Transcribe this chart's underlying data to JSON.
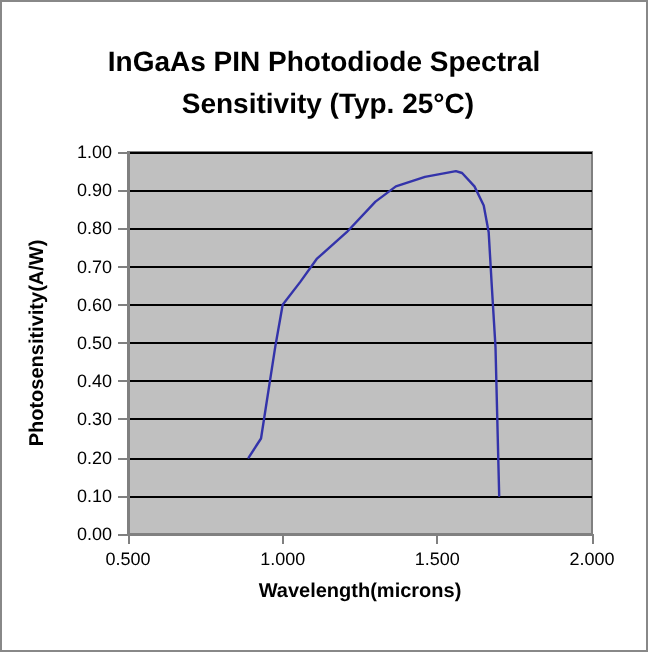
{
  "chart_data": {
    "type": "line",
    "title": "InGaAs PIN Photodiode Spectral Sensitivity (Typ. 25°C)",
    "xlabel": "Wavelength(microns)",
    "ylabel": "Photosensitivity(A/W)",
    "series": [
      {
        "color": "#3333aa",
        "x": [
          0.89,
          0.93,
          0.976,
          1.0,
          1.057,
          1.11,
          1.207,
          1.3,
          1.366,
          1.46,
          1.56,
          1.58,
          1.62,
          1.65,
          1.666,
          1.676,
          1.688,
          1.7
        ],
        "values": [
          0.2,
          0.25,
          0.49,
          0.6,
          0.66,
          0.72,
          0.79,
          0.87,
          0.91,
          0.935,
          0.95,
          0.945,
          0.91,
          0.86,
          0.79,
          0.65,
          0.49,
          0.1
        ]
      }
    ],
    "xlim": [
      0.5,
      2.0
    ],
    "xticks": [
      {
        "value": 0.5,
        "label": "0.500"
      },
      {
        "value": 1.0,
        "label": "1.000"
      },
      {
        "value": 1.5,
        "label": "1.500"
      },
      {
        "value": 2.0,
        "label": "2.000"
      }
    ],
    "ylim": [
      0,
      1
    ],
    "yticks": [
      {
        "value": 0,
        "label": "0.00"
      },
      {
        "value": 0.1,
        "label": "0.10"
      },
      {
        "value": 0.2,
        "label": "0.20"
      },
      {
        "value": 0.3,
        "label": "0.30"
      },
      {
        "value": 0.4,
        "label": "0.40"
      },
      {
        "value": 0.5,
        "label": "0.50"
      },
      {
        "value": 0.6,
        "label": "0.60"
      },
      {
        "value": 0.7,
        "label": "0.70"
      },
      {
        "value": 0.8,
        "label": "0.80"
      },
      {
        "value": 0.9,
        "label": "0.90"
      },
      {
        "value": 1.0,
        "label": "1.00"
      }
    ],
    "grid": "y",
    "marker": "none",
    "line_style": "solid"
  }
}
